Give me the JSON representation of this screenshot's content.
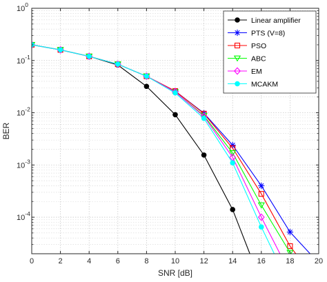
{
  "chart_data": {
    "type": "line",
    "title": "",
    "xlabel": "SNR [dB]",
    "ylabel": "BER",
    "xlim": [
      0,
      20
    ],
    "ylim": [
      2e-05,
      1
    ],
    "yscale": "log",
    "grid": true,
    "minor_grid": true,
    "legend_position": "top-right",
    "x_ticks": [
      0,
      2,
      4,
      6,
      8,
      10,
      12,
      14,
      16,
      18,
      20
    ],
    "x_tick_labels": [
      "0",
      "2",
      "4",
      "6",
      "8",
      "10",
      "12",
      "14",
      "16",
      "18",
      "20"
    ],
    "y_ticks": [
      {
        "value": 1,
        "exp": "0"
      },
      {
        "value": 0.1,
        "exp": "-1"
      },
      {
        "value": 0.01,
        "exp": "-2"
      },
      {
        "value": 0.001,
        "exp": "-3"
      },
      {
        "value": 0.0001,
        "exp": "-4"
      }
    ],
    "y_tick_base": "10",
    "series": [
      {
        "name": "Linear amplifier",
        "color": "#000000",
        "marker": "dot",
        "x": [
          0,
          2,
          4,
          6,
          8,
          10,
          12,
          14,
          15.2
        ],
        "y": [
          0.2,
          0.16,
          0.12,
          0.082,
          0.032,
          0.0092,
          0.00155,
          0.00014,
          2e-05
        ],
        "marker_count": 8
      },
      {
        "name": "PTS (V=8)",
        "color": "#0000ff",
        "marker": "asterisk",
        "x": [
          0,
          2,
          4,
          6,
          8,
          10,
          12,
          14,
          16,
          18,
          19.4
        ],
        "y": [
          0.2,
          0.16,
          0.12,
          0.085,
          0.05,
          0.026,
          0.0098,
          0.0024,
          0.0004,
          5.2e-05,
          2e-05
        ],
        "marker_count": 10
      },
      {
        "name": "PSO",
        "color": "#ff0000",
        "marker": "square",
        "x": [
          0,
          2,
          4,
          6,
          8,
          10,
          12,
          14,
          16,
          18,
          18.4
        ],
        "y": [
          0.2,
          0.16,
          0.12,
          0.085,
          0.05,
          0.026,
          0.0096,
          0.0021,
          0.00028,
          2.8e-05,
          2e-05
        ],
        "marker_count": 10
      },
      {
        "name": "ABC",
        "color": "#00ff00",
        "marker": "triangle-down",
        "x": [
          0,
          2,
          4,
          6,
          8,
          10,
          12,
          14,
          16,
          18,
          18.1
        ],
        "y": [
          0.2,
          0.16,
          0.12,
          0.085,
          0.05,
          0.025,
          0.0088,
          0.0017,
          0.00017,
          2.1e-05,
          2e-05
        ],
        "marker_count": 10
      },
      {
        "name": "EM",
        "color": "#ff00ff",
        "marker": "diamond",
        "x": [
          0,
          2,
          4,
          6,
          8,
          10,
          12,
          14,
          16,
          17.3
        ],
        "y": [
          0.2,
          0.16,
          0.12,
          0.085,
          0.05,
          0.025,
          0.0085,
          0.0014,
          0.0001,
          2e-05
        ],
        "marker_count": 9
      },
      {
        "name": "MCAKM",
        "color": "#00ffff",
        "marker": "dot",
        "x": [
          0,
          2,
          4,
          6,
          8,
          10,
          12,
          14,
          16,
          16.9
        ],
        "y": [
          0.2,
          0.16,
          0.12,
          0.085,
          0.05,
          0.024,
          0.0078,
          0.0011,
          6.5e-05,
          2e-05
        ],
        "marker_count": 9
      }
    ]
  }
}
